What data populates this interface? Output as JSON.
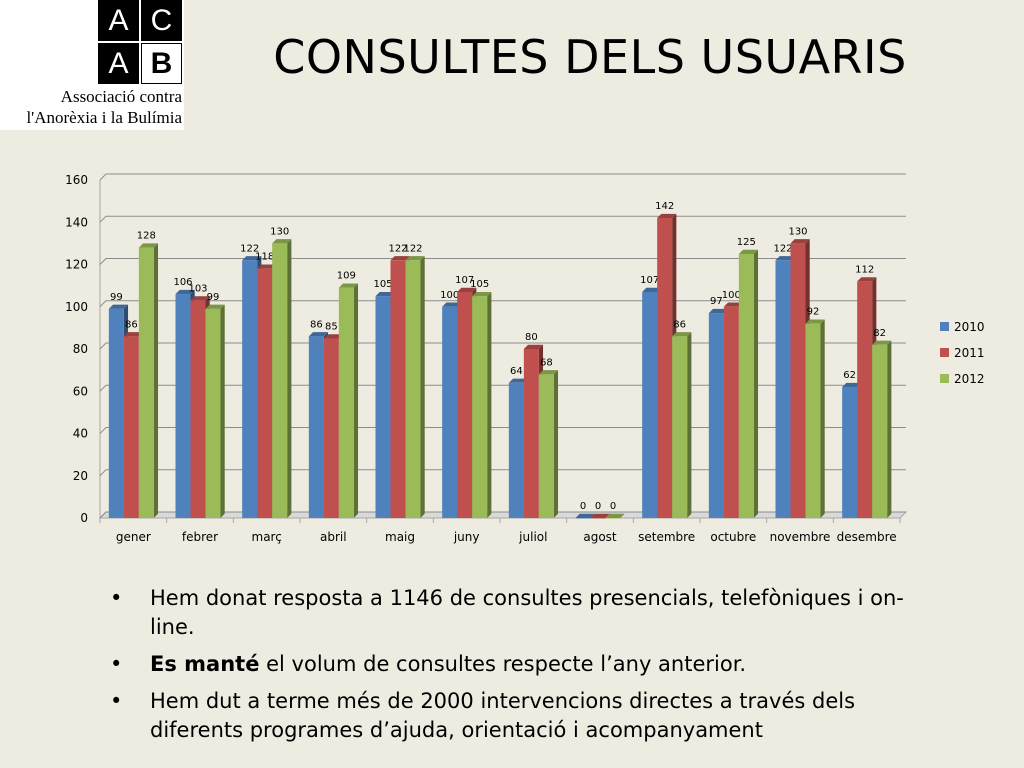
{
  "logo": {
    "letters": [
      "A",
      "C",
      "A",
      "B"
    ],
    "line1": "Associació contra",
    "line2": "l'Anorèxia i la Bulímia"
  },
  "title": "CONSULTES DELS USUARIS",
  "chart_data": {
    "type": "bar",
    "categories": [
      "gener",
      "febrer",
      "març",
      "abril",
      "maig",
      "juny",
      "juliol",
      "agost",
      "setembre",
      "octubre",
      "novembre",
      "desembre"
    ],
    "series": [
      {
        "name": "2010",
        "color": "#4f81bd",
        "values": [
          99,
          106,
          122,
          86,
          105,
          100,
          64,
          0,
          107,
          97,
          122,
          62
        ]
      },
      {
        "name": "2011",
        "color": "#c0504d",
        "values": [
          86,
          103,
          118,
          85,
          122,
          107,
          80,
          0,
          142,
          100,
          130,
          112
        ]
      },
      {
        "name": "2012",
        "color": "#9bbb59",
        "values": [
          128,
          99,
          130,
          109,
          122,
          105,
          68,
          0,
          86,
          125,
          92,
          82
        ]
      }
    ],
    "ylim": [
      0,
      160
    ],
    "yticks": [
      0,
      20,
      40,
      60,
      80,
      100,
      120,
      140,
      160
    ],
    "grid": true,
    "legend": "right",
    "data_labels": true
  },
  "bullets": [
    {
      "bold": "",
      "text": "Hem  donat resposta a  1146 de consultes presencials, telefòniques i on-line."
    },
    {
      "bold": "Es manté",
      "text": " el volum de consultes respecte l’any anterior."
    },
    {
      "bold": "",
      "text": "Hem dut a terme més de 2000 intervencions directes a través dels diferents programes d’ajuda, orientació i acompanyament"
    }
  ],
  "bullet_symbol": "•"
}
